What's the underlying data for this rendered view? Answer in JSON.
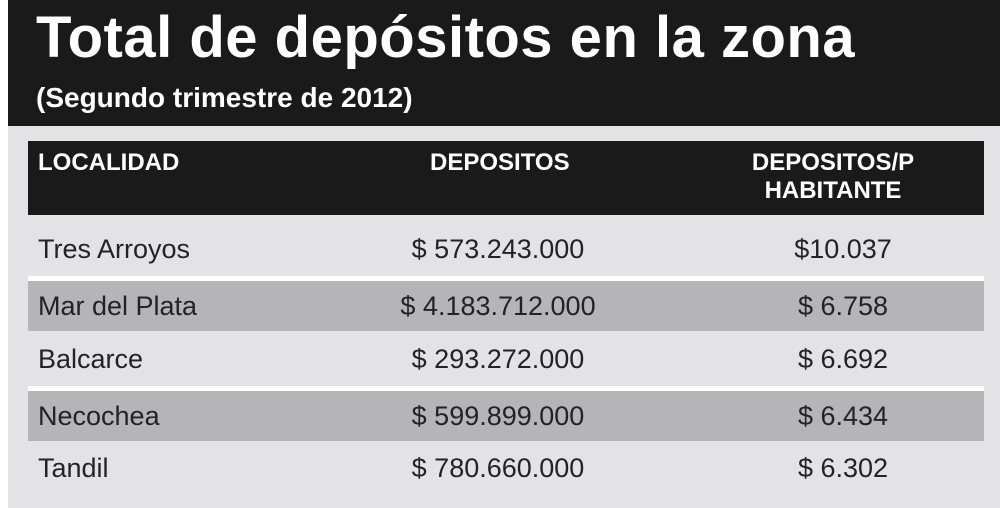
{
  "header": {
    "title": "Total de depósitos en la zona",
    "subtitle": "(Segundo trimestre de 2012)"
  },
  "table": {
    "columns": [
      "LOCALIDAD",
      "DEPOSITOS",
      "DEPOSITOS/P HABITANTE"
    ],
    "rows": [
      [
        "Tres Arroyos",
        "$ 573.243.000",
        "$10.037"
      ],
      [
        "Mar del Plata",
        "$ 4.183.712.000",
        "$ 6.758"
      ],
      [
        "Balcarce",
        "$ 293.272.000",
        "$ 6.692"
      ],
      [
        "Necochea",
        "$ 599.899.000",
        "$ 6.434"
      ],
      [
        "Tandil",
        "$ 780.660.000",
        "$ 6.302"
      ]
    ]
  }
}
